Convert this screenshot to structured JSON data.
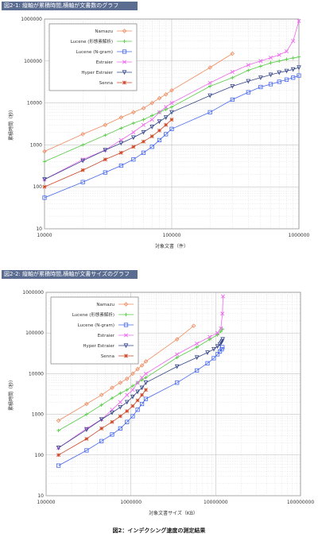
{
  "figure1": {
    "header": "図2-1: 縦軸が累積時間,横軸が文書数のグラフ"
  },
  "figure2": {
    "header": "図2-2: 縦軸が累積時間,横軸が文書サイズのグラフ"
  },
  "caption": "図2：インデクシング速度の測定結果",
  "chart_data": [
    {
      "type": "line",
      "xlabel": "対象文書（件）",
      "ylabel": "累積時間（秒）",
      "xscale": "log",
      "yscale": "log",
      "xlim": [
        10000,
        1000000
      ],
      "ylim": [
        10,
        1000000
      ],
      "xticks": [
        "10000",
        "100000",
        "1000000"
      ],
      "yticks": [
        "10",
        "100",
        "1000",
        "10000",
        "100000",
        "1000000"
      ],
      "grid": true,
      "legend": "top-left",
      "series": [
        {
          "name": "Namazu",
          "color": "#f08a5d",
          "marker": "diamond",
          "points": [
            [
              10000,
              700
            ],
            [
              20000,
              1800
            ],
            [
              30000,
              3000
            ],
            [
              40000,
              4500
            ],
            [
              50000,
              6000
            ],
            [
              60000,
              7500
            ],
            [
              70000,
              10000
            ],
            [
              80000,
              13000
            ],
            [
              90000,
              16000
            ],
            [
              100000,
              20000
            ],
            [
              200000,
              70000
            ],
            [
              300000,
              150000
            ]
          ]
        },
        {
          "name": "Lucene (形態素解析)",
          "color": "#55cc44",
          "marker": "plus",
          "points": [
            [
              10000,
              400
            ],
            [
              20000,
              1000
            ],
            [
              30000,
              1700
            ],
            [
              40000,
              2500
            ],
            [
              50000,
              3300
            ],
            [
              60000,
              4000
            ],
            [
              70000,
              5000
            ],
            [
              80000,
              6000
            ],
            [
              90000,
              7000
            ],
            [
              100000,
              8000
            ],
            [
              200000,
              25000
            ],
            [
              300000,
              40000
            ],
            [
              400000,
              60000
            ],
            [
              500000,
              75000
            ],
            [
              600000,
              90000
            ],
            [
              700000,
              100000
            ],
            [
              800000,
              110000
            ],
            [
              900000,
              118000
            ],
            [
              1000000,
              125000
            ]
          ]
        },
        {
          "name": "Lucene (N-gram)",
          "color": "#4466ee",
          "marker": "square",
          "points": [
            [
              10000,
              55
            ],
            [
              20000,
              130
            ],
            [
              30000,
              220
            ],
            [
              40000,
              320
            ],
            [
              50000,
              450
            ],
            [
              60000,
              650
            ],
            [
              70000,
              900
            ],
            [
              80000,
              1300
            ],
            [
              90000,
              1800
            ],
            [
              100000,
              2400
            ],
            [
              200000,
              6000
            ],
            [
              300000,
              12000
            ],
            [
              400000,
              18000
            ],
            [
              500000,
              24000
            ],
            [
              600000,
              28000
            ],
            [
              700000,
              32000
            ],
            [
              800000,
              36000
            ],
            [
              900000,
              40000
            ],
            [
              1000000,
              45000
            ]
          ]
        },
        {
          "name": "Estraier",
          "color": "#ee66ee",
          "marker": "cross",
          "points": [
            [
              10000,
              150
            ],
            [
              20000,
              450
            ],
            [
              30000,
              750
            ],
            [
              40000,
              1300
            ],
            [
              50000,
              2000
            ],
            [
              60000,
              3000
            ],
            [
              70000,
              4000
            ],
            [
              80000,
              6000
            ],
            [
              90000,
              8000
            ],
            [
              100000,
              10000
            ],
            [
              200000,
              30000
            ],
            [
              300000,
              55000
            ],
            [
              400000,
              80000
            ],
            [
              500000,
              100000
            ],
            [
              600000,
              120000
            ],
            [
              700000,
              140000
            ],
            [
              800000,
              170000
            ],
            [
              900000,
              300000
            ],
            [
              1000000,
              900000
            ]
          ]
        },
        {
          "name": "Hyper Estraier",
          "color": "#334488",
          "marker": "triangle",
          "points": [
            [
              10000,
              150
            ],
            [
              20000,
              420
            ],
            [
              30000,
              750
            ],
            [
              40000,
              1100
            ],
            [
              50000,
              1500
            ],
            [
              60000,
              2000
            ],
            [
              70000,
              2700
            ],
            [
              80000,
              3600
            ],
            [
              90000,
              4500
            ],
            [
              100000,
              6000
            ],
            [
              200000,
              15000
            ],
            [
              300000,
              25000
            ],
            [
              400000,
              33000
            ],
            [
              500000,
              40000
            ],
            [
              600000,
              47000
            ],
            [
              700000,
              53000
            ],
            [
              800000,
              58000
            ],
            [
              900000,
              63000
            ],
            [
              1000000,
              70000
            ]
          ]
        },
        {
          "name": "Senna",
          "color": "#cc4422",
          "marker": "star",
          "points": [
            [
              10000,
              100
            ],
            [
              20000,
              250
            ],
            [
              30000,
              450
            ],
            [
              40000,
              650
            ],
            [
              50000,
              900
            ],
            [
              60000,
              1200
            ],
            [
              70000,
              1600
            ],
            [
              80000,
              2200
            ],
            [
              90000,
              3000
            ],
            [
              100000,
              4000
            ]
          ]
        }
      ]
    },
    {
      "type": "line",
      "xlabel": "対象文書サイズ（KB）",
      "ylabel": "累積時間（秒）",
      "xscale": "log",
      "yscale": "log",
      "xlim": [
        100000,
        100000000
      ],
      "ylim": [
        10,
        1000000
      ],
      "xticks": [
        "100000",
        "1000000",
        "10000000",
        "100000000"
      ],
      "yticks": [
        "10",
        "100",
        "1000",
        "10000",
        "100000",
        "1000000"
      ],
      "grid": true,
      "legend": "top-left",
      "series": [
        {
          "name": "Namazu",
          "color": "#f08a5d",
          "marker": "diamond",
          "points": [
            [
              140000,
              700
            ],
            [
              300000,
              1800
            ],
            [
              450000,
              3000
            ],
            [
              600000,
              4500
            ],
            [
              750000,
              6000
            ],
            [
              900000,
              7500
            ],
            [
              1050000,
              10000
            ],
            [
              1200000,
              13000
            ],
            [
              1350000,
              16000
            ],
            [
              1500000,
              20000
            ],
            [
              3500000,
              70000
            ],
            [
              5500000,
              150000
            ]
          ]
        },
        {
          "name": "Lucene (形態素解析)",
          "color": "#55cc44",
          "marker": "plus",
          "points": [
            [
              140000,
              400
            ],
            [
              300000,
              1000
            ],
            [
              450000,
              1700
            ],
            [
              600000,
              2500
            ],
            [
              750000,
              3300
            ],
            [
              900000,
              4000
            ],
            [
              1050000,
              5000
            ],
            [
              1200000,
              6000
            ],
            [
              1350000,
              7000
            ],
            [
              1500000,
              8000
            ],
            [
              3500000,
              25000
            ],
            [
              6000000,
              45000
            ],
            [
              8500000,
              70000
            ],
            [
              10500000,
              90000
            ],
            [
              11500000,
              110000
            ],
            [
              12000000,
              125000
            ]
          ]
        },
        {
          "name": "Lucene (N-gram)",
          "color": "#4466ee",
          "marker": "square",
          "points": [
            [
              140000,
              55
            ],
            [
              300000,
              130
            ],
            [
              450000,
              220
            ],
            [
              600000,
              320
            ],
            [
              750000,
              450
            ],
            [
              900000,
              650
            ],
            [
              1050000,
              900
            ],
            [
              1200000,
              1300
            ],
            [
              1350000,
              1800
            ],
            [
              1500000,
              2400
            ],
            [
              3500000,
              6000
            ],
            [
              6000000,
              12000
            ],
            [
              8000000,
              18000
            ],
            [
              9500000,
              24000
            ],
            [
              10500000,
              30000
            ],
            [
              11200000,
              35000
            ],
            [
              11800000,
              40000
            ],
            [
              12000000,
              45000
            ]
          ]
        },
        {
          "name": "Estraier",
          "color": "#ee66ee",
          "marker": "cross",
          "points": [
            [
              140000,
              150
            ],
            [
              300000,
              450
            ],
            [
              450000,
              750
            ],
            [
              600000,
              1300
            ],
            [
              750000,
              2000
            ],
            [
              900000,
              3000
            ],
            [
              1050000,
              4000
            ],
            [
              1200000,
              6000
            ],
            [
              1350000,
              8000
            ],
            [
              1500000,
              10000
            ],
            [
              3500000,
              30000
            ],
            [
              6000000,
              55000
            ],
            [
              8500000,
              80000
            ],
            [
              10500000,
              100000
            ],
            [
              11500000,
              130000
            ],
            [
              12000000,
              300000
            ],
            [
              12200000,
              800000
            ]
          ]
        },
        {
          "name": "Hyper Estraier",
          "color": "#334488",
          "marker": "triangle",
          "points": [
            [
              140000,
              150
            ],
            [
              300000,
              420
            ],
            [
              450000,
              750
            ],
            [
              600000,
              1100
            ],
            [
              750000,
              1500
            ],
            [
              900000,
              2000
            ],
            [
              1050000,
              2700
            ],
            [
              1200000,
              3600
            ],
            [
              1350000,
              4500
            ],
            [
              1500000,
              6000
            ],
            [
              3500000,
              15000
            ],
            [
              6000000,
              25000
            ],
            [
              8000000,
              33000
            ],
            [
              9500000,
              40000
            ],
            [
              10500000,
              47000
            ],
            [
              11200000,
              53000
            ],
            [
              11600000,
              58000
            ],
            [
              11900000,
              63000
            ],
            [
              12100000,
              70000
            ]
          ]
        },
        {
          "name": "Senna",
          "color": "#cc4422",
          "marker": "star",
          "points": [
            [
              140000,
              100
            ],
            [
              300000,
              250
            ],
            [
              450000,
              450
            ],
            [
              600000,
              650
            ],
            [
              750000,
              900
            ],
            [
              900000,
              1200
            ],
            [
              1050000,
              1600
            ],
            [
              1200000,
              2200
            ],
            [
              1350000,
              3000
            ],
            [
              1500000,
              4000
            ]
          ]
        }
      ]
    }
  ]
}
